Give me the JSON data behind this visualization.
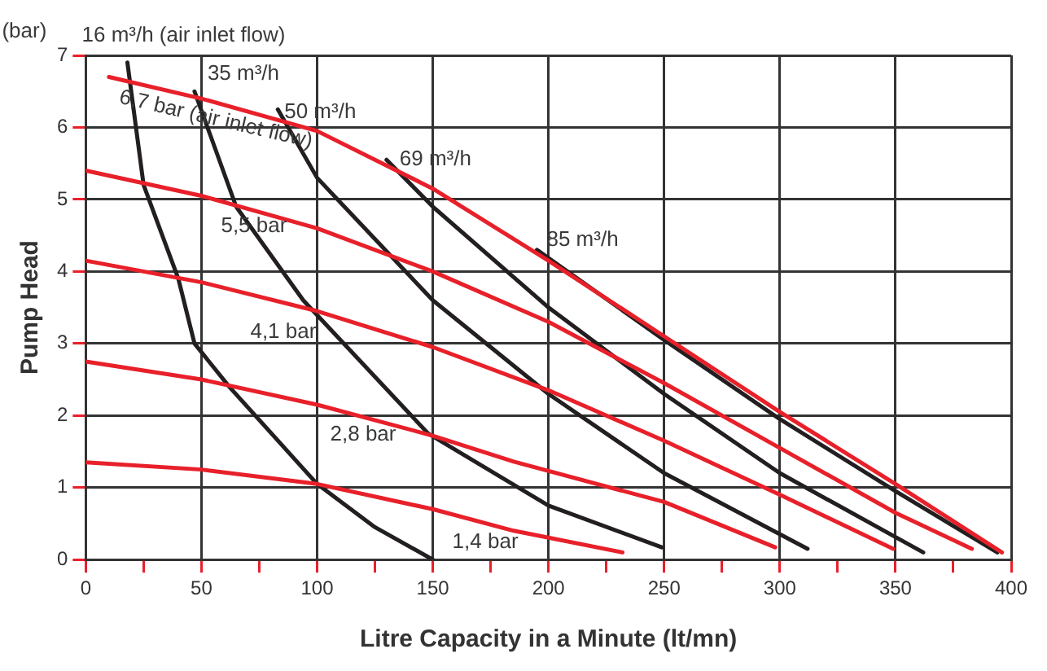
{
  "chart_data": {
    "type": "line",
    "xlabel": "Litre Capacity in a Minute (lt/mn)",
    "ylabel": "Pump Head",
    "annotations": [
      "(bar)"
    ],
    "xlim": [
      0,
      400
    ],
    "ylim": [
      0,
      7
    ],
    "xticks": [
      0,
      {
        "value": 25,
        "label": null
      },
      50,
      {
        "value": 75,
        "label": null
      },
      100,
      {
        "value": 125,
        "label": null
      },
      150,
      {
        "value": 175,
        "label": null
      },
      200,
      {
        "value": 225,
        "label": null
      },
      250,
      {
        "value": 275,
        "label": null
      },
      300,
      {
        "value": 325,
        "label": null
      },
      350,
      {
        "value": 375,
        "label": null
      },
      400
    ],
    "yticks": [
      0,
      1,
      2,
      3,
      4,
      5,
      6,
      7
    ],
    "grid": true,
    "legend": false,
    "marker": "none",
    "line_style": "solid",
    "series": [
      {
        "name": "6,7 bar (air inlet flow)",
        "color": "#e8202a",
        "x": [
          10,
          50,
          100,
          150,
          200,
          250,
          300,
          350,
          396
        ],
        "values": [
          6.7,
          6.4,
          5.95,
          5.15,
          4.15,
          3.1,
          2.05,
          1.05,
          0.1
        ]
      },
      {
        "name": "5,5 bar",
        "color": "#e8202a",
        "x": [
          0,
          50,
          100,
          150,
          200,
          250,
          300,
          350,
          383
        ],
        "values": [
          5.4,
          5.05,
          4.6,
          4.0,
          3.3,
          2.45,
          1.55,
          0.65,
          0.15
        ]
      },
      {
        "name": "4,1 bar",
        "color": "#e8202a",
        "x": [
          0,
          50,
          100,
          150,
          200,
          250,
          300,
          349
        ],
        "values": [
          4.15,
          3.85,
          3.45,
          2.95,
          2.35,
          1.65,
          0.9,
          0.15
        ]
      },
      {
        "name": "2,8 bar",
        "color": "#e8202a",
        "x": [
          0,
          50,
          100,
          150,
          185,
          250,
          298
        ],
        "values": [
          2.75,
          2.5,
          2.15,
          1.72,
          1.36,
          0.8,
          0.17
        ]
      },
      {
        "name": "1,4 bar",
        "color": "#e8202a",
        "x": [
          0,
          50,
          100,
          150,
          185,
          232
        ],
        "values": [
          1.35,
          1.25,
          1.05,
          0.7,
          0.4,
          0.1
        ]
      },
      {
        "name": "16 m³/h (air inlet flow)",
        "color": "#231f20",
        "x": [
          18,
          25,
          40,
          47,
          62,
          100,
          125,
          150
        ],
        "values": [
          6.9,
          5.2,
          3.9,
          3.0,
          2.4,
          1.05,
          0.45,
          0
        ]
      },
      {
        "name": "35 m³/h",
        "color": "#231f20",
        "x": [
          47,
          65,
          94,
          148,
          200,
          249
        ],
        "values": [
          6.5,
          4.9,
          3.6,
          1.75,
          0.75,
          0.17
        ]
      },
      {
        "name": "50 m³/h",
        "color": "#231f20",
        "x": [
          83,
          100,
          150,
          200,
          250,
          312
        ],
        "values": [
          6.25,
          5.3,
          3.6,
          2.3,
          1.2,
          0.15
        ]
      },
      {
        "name": "69 m³/h",
        "color": "#231f20",
        "x": [
          130,
          150,
          200,
          250,
          300,
          362
        ],
        "values": [
          5.55,
          4.9,
          3.5,
          2.3,
          1.2,
          0.1
        ]
      },
      {
        "name": "85 m³/h",
        "color": "#231f20",
        "x": [
          195,
          250,
          300,
          350,
          394
        ],
        "values": [
          4.3,
          3.05,
          1.95,
          0.95,
          0.1
        ]
      }
    ]
  }
}
